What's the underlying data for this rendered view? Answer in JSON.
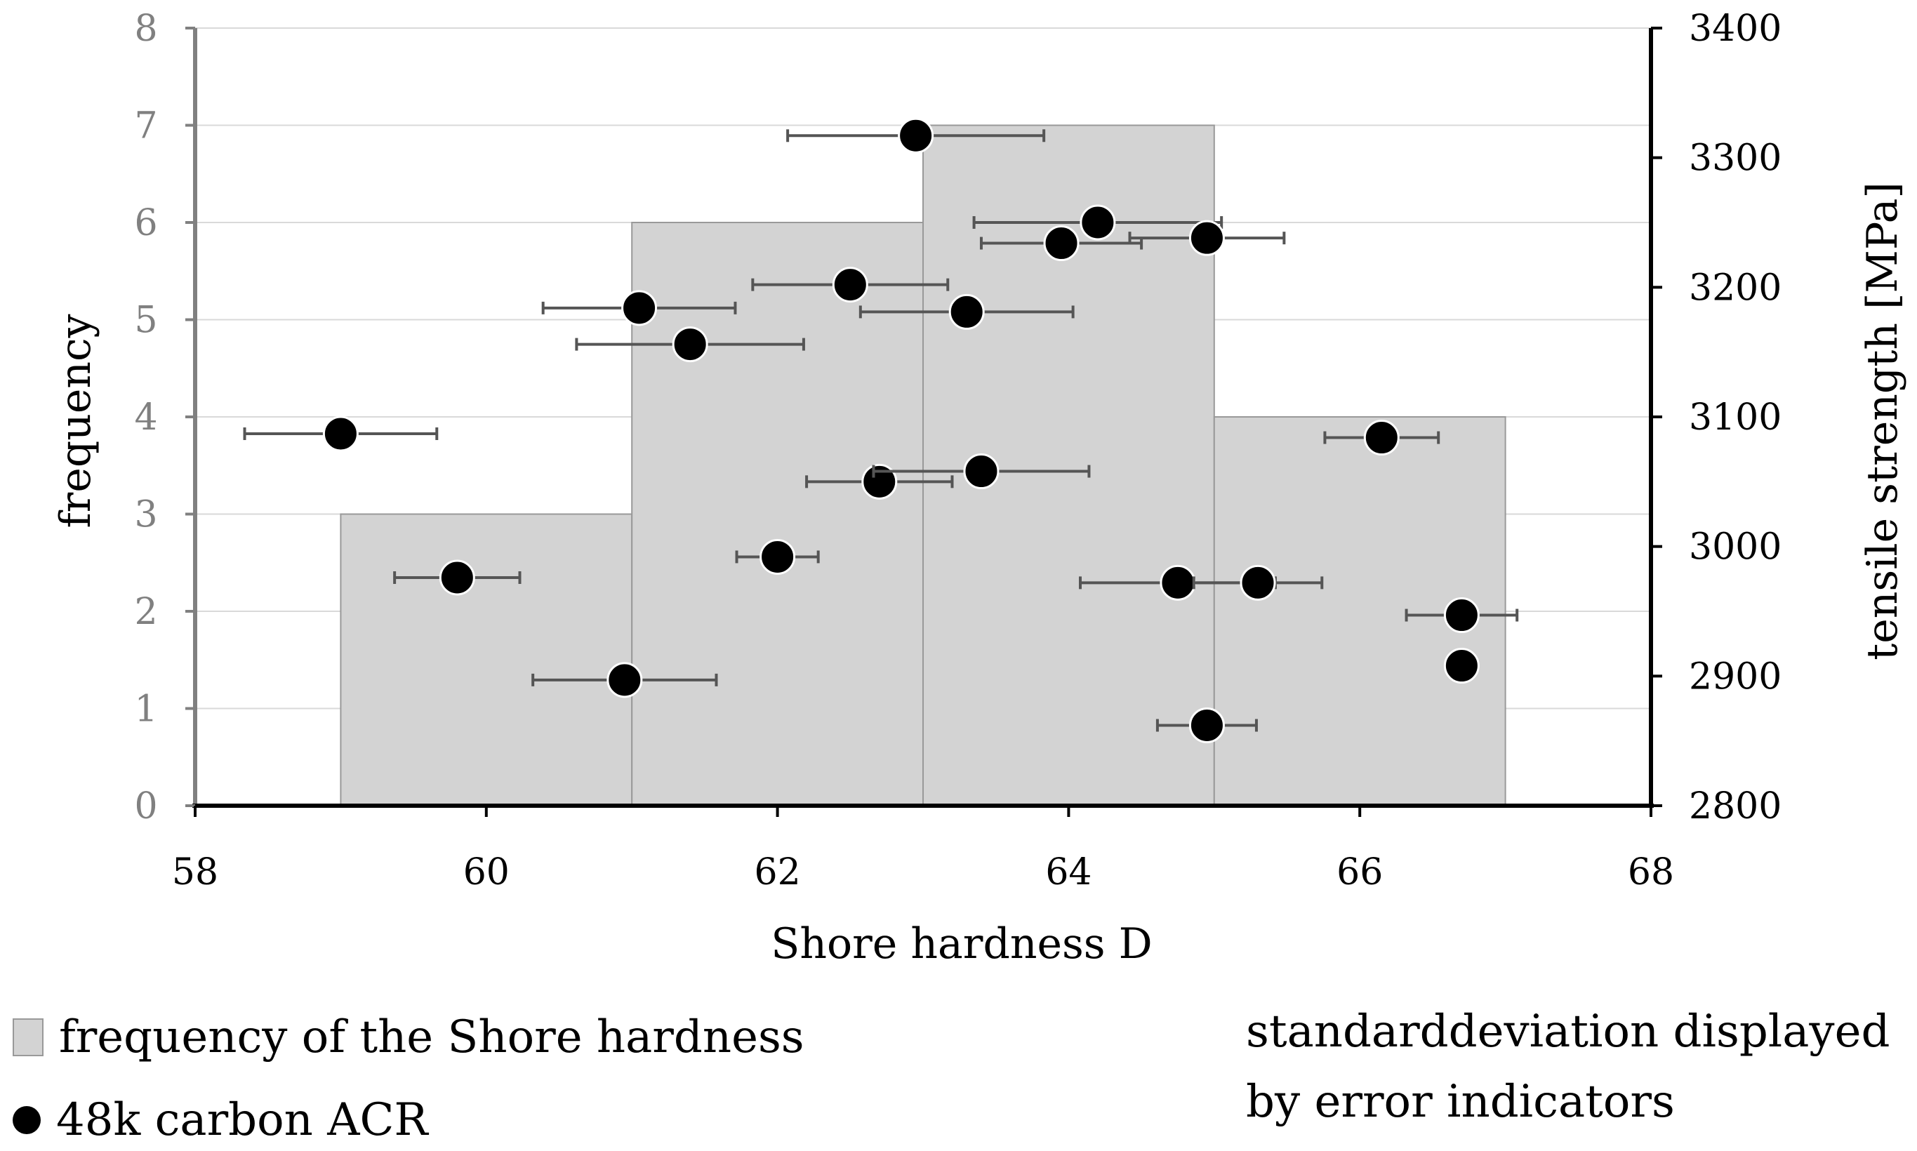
{
  "chart_data": {
    "type": "bar+scatter",
    "title": "",
    "xlabel": "Shore hardness D",
    "ylabel_left": "frequency",
    "ylabel_right": "tensile strength [MPa]",
    "xlim": [
      58,
      68
    ],
    "ylim_left": [
      0,
      8
    ],
    "ylim_right": [
      2800,
      3400
    ],
    "x_ticks": [
      "58",
      "60",
      "62",
      "64",
      "66",
      "68"
    ],
    "y_left_ticks": [
      "0",
      "1",
      "2",
      "3",
      "4",
      "5",
      "6",
      "7",
      "8"
    ],
    "y_right_ticks": [
      "2800",
      "2900",
      "3000",
      "3100",
      "3200",
      "3300",
      "3400"
    ],
    "grid": true,
    "bars": [
      {
        "from": 59,
        "to": 61,
        "frequency": 3
      },
      {
        "from": 61,
        "to": 63,
        "frequency": 6
      },
      {
        "from": 63,
        "to": 65,
        "frequency": 7
      },
      {
        "from": 65,
        "to": 67,
        "frequency": 4
      }
    ],
    "bar_color": "#d3d3d3",
    "series": [
      {
        "name": "48k carbon ACR",
        "points": [
          {
            "x": 59.0,
            "y": 3087,
            "sd": 0.66
          },
          {
            "x": 59.8,
            "y": 2976,
            "sd": 0.43
          },
          {
            "x": 60.95,
            "y": 2897,
            "sd": 0.63
          },
          {
            "x": 61.05,
            "y": 3184,
            "sd": 0.66
          },
          {
            "x": 61.4,
            "y": 3156,
            "sd": 0.78
          },
          {
            "x": 62.0,
            "y": 2992,
            "sd": 0.28
          },
          {
            "x": 62.5,
            "y": 3202,
            "sd": 0.67
          },
          {
            "x": 62.7,
            "y": 3050,
            "sd": 0.5
          },
          {
            "x": 62.95,
            "y": 3317,
            "sd": 0.88
          },
          {
            "x": 63.3,
            "y": 3181,
            "sd": 0.73
          },
          {
            "x": 63.4,
            "y": 3058,
            "sd": 0.74
          },
          {
            "x": 63.95,
            "y": 3234,
            "sd": 0.55
          },
          {
            "x": 64.2,
            "y": 3250,
            "sd": 0.85
          },
          {
            "x": 64.75,
            "y": 2972,
            "sd": 0.67
          },
          {
            "x": 64.95,
            "y": 3238,
            "sd": 0.53
          },
          {
            "x": 64.95,
            "y": 2862,
            "sd": 0.34
          },
          {
            "x": 65.3,
            "y": 2972,
            "sd": 0.44
          },
          {
            "x": 66.15,
            "y": 3084,
            "sd": 0.39
          },
          {
            "x": 66.7,
            "y": 2947,
            "sd": 0.38
          },
          {
            "x": 66.7,
            "y": 2908,
            "sd": 0
          }
        ]
      }
    ],
    "legend": [
      {
        "label": "frequency of the Shore hardness",
        "type": "bar"
      },
      {
        "label": "48k carbon ACR",
        "type": "marker"
      }
    ],
    "note": "standarddeviation displayed by error indicators"
  }
}
